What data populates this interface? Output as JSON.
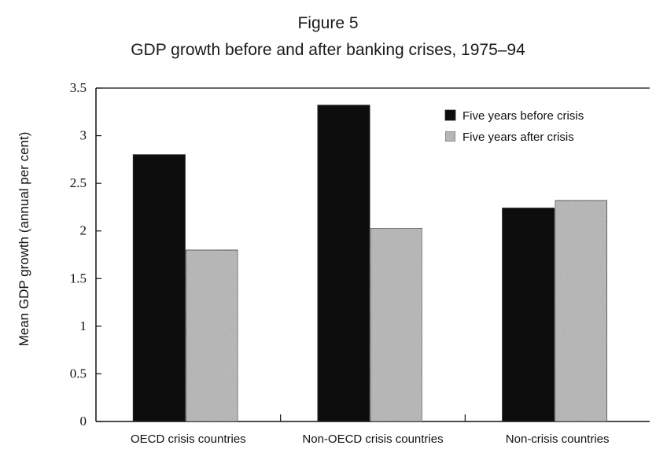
{
  "figure_label": "Figure 5",
  "chart_data": {
    "type": "bar",
    "title": "GDP growth before and after banking crises, 1975–94",
    "xlabel": "",
    "ylabel": "Mean GDP growth (annual per cent)",
    "categories": [
      "OECD crisis countries",
      "Non-OECD crisis countries",
      "Non-crisis countries"
    ],
    "series": [
      {
        "name": "Five years before crisis",
        "values": [
          2.8,
          3.32,
          2.24
        ],
        "color": "#0d0d0d"
      },
      {
        "name": "Five years after crisis",
        "values": [
          1.8,
          2.03,
          2.32
        ],
        "color": "#b5b5b5"
      }
    ],
    "ylim": [
      0,
      3.5
    ],
    "yticks": [
      "0",
      "0.5",
      "1",
      "1.5",
      "2",
      "2.5",
      "3",
      "3.5"
    ],
    "grid": false,
    "legend_position": "top-right"
  }
}
